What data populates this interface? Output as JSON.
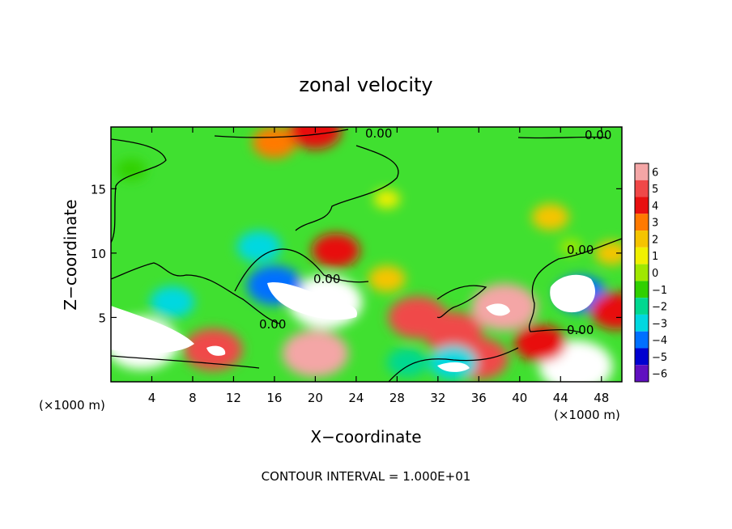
{
  "chart_data": {
    "type": "heatmap",
    "title": "zonal velocity",
    "xlabel": "X−coordinate",
    "ylabel": "Z−coordinate",
    "x_unit_left": "(×1000 m)",
    "x_unit_right": "(×1000 m)",
    "footer": "CONTOUR INTERVAL = 1.000E+01",
    "xlim": [
      0,
      50
    ],
    "ylim": [
      0,
      19.8
    ],
    "x_ticks": [
      4,
      8,
      12,
      16,
      20,
      24,
      28,
      32,
      36,
      40,
      44,
      48
    ],
    "y_ticks": [
      5,
      10,
      15
    ],
    "contour_labels": [
      "0.00",
      "0.00",
      "0.00",
      "0.00",
      "0.00",
      "0.00"
    ],
    "colorbar": {
      "levels": [
        6,
        5,
        4,
        3,
        2,
        1,
        0,
        -1,
        -2,
        -3,
        -4,
        -5,
        -6
      ],
      "colors": [
        "#f4a6a6",
        "#f04848",
        "#e81010",
        "#ff7a00",
        "#f5c400",
        "#f0f000",
        "#a0e800",
        "#30d000",
        "#00d890",
        "#00d8e0",
        "#0070ff",
        "#0000d0",
        "#6010c0"
      ]
    },
    "anomalies": [
      {
        "x": 3,
        "z": 3,
        "value": 7
      },
      {
        "x": 10,
        "z": 2.5,
        "value": 5
      },
      {
        "x": 20,
        "z": 2.2,
        "value": 6
      },
      {
        "x": 21,
        "z": 6.2,
        "value": 7
      },
      {
        "x": 16,
        "z": 7.5,
        "value": -4.5
      },
      {
        "x": 14.5,
        "z": 10.5,
        "value": -3
      },
      {
        "x": 6,
        "z": 6.2,
        "value": -3
      },
      {
        "x": 22,
        "z": 10.2,
        "value": 3.5
      },
      {
        "x": 27,
        "z": 8,
        "value": 2
      },
      {
        "x": 30,
        "z": 5,
        "value": 5
      },
      {
        "x": 33.5,
        "z": 3.8,
        "value": 5
      },
      {
        "x": 38.5,
        "z": 5.8,
        "value": 6
      },
      {
        "x": 36,
        "z": 1.8,
        "value": 5
      },
      {
        "x": 46,
        "z": 6.8,
        "value": -4
      },
      {
        "x": 45,
        "z": 10.5,
        "value": 0
      },
      {
        "x": 43,
        "z": 12.8,
        "value": 2
      },
      {
        "x": 45.5,
        "z": 1.2,
        "value": 7
      },
      {
        "x": 42,
        "z": 3,
        "value": 4
      },
      {
        "x": 49.5,
        "z": 5.5,
        "value": 4
      },
      {
        "x": 2,
        "z": 16.5,
        "value": -1
      },
      {
        "x": 16,
        "z": 18.6,
        "value": 3
      },
      {
        "x": 20,
        "z": 19.5,
        "value": 4
      },
      {
        "x": 27,
        "z": 14.2,
        "value": 0.5
      },
      {
        "x": 33.5,
        "z": 1.5,
        "value": -3.5
      },
      {
        "x": 29,
        "z": 1.5,
        "value": -2.5
      },
      {
        "x": 49,
        "z": 10,
        "value": 1.5
      }
    ]
  }
}
